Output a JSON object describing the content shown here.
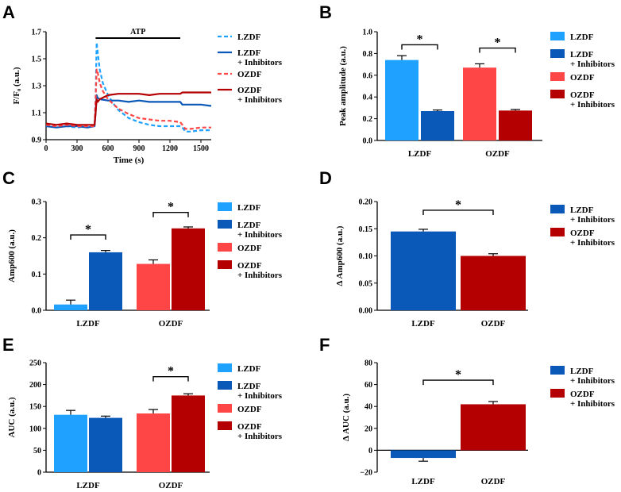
{
  "colors": {
    "lzdf": "#1fa2ff",
    "lzdf_inh": "#0a58b8",
    "ozdf": "#ff4646",
    "ozdf_inh": "#b40000",
    "axis": "#000000"
  },
  "chart_data": [
    {
      "panel": "A",
      "type": "line",
      "title": "",
      "xlabel": "Time (s)",
      "ylabel": "F/F₀ (a.u.)",
      "xlim": [
        0,
        1600
      ],
      "ylim": [
        0.9,
        1.7
      ],
      "xticks": [
        0,
        300,
        600,
        900,
        1200,
        1500
      ],
      "yticks": [
        0.9,
        1.1,
        1.3,
        1.5,
        1.7
      ],
      "ytick_labels": [
        "0.9",
        "1.1",
        "1.3",
        "1.5",
        "1.7"
      ],
      "annotation": {
        "label": "ATP",
        "x_start": 480,
        "x_end": 1300
      },
      "series": [
        {
          "key": "lzdf",
          "name": "LZDF",
          "line2": "",
          "dash": true,
          "x": [
            0,
            100,
            200,
            300,
            400,
            470,
            480,
            490,
            500,
            520,
            550,
            600,
            650,
            700,
            800,
            900,
            1000,
            1100,
            1200,
            1300,
            1320,
            1350,
            1400,
            1500,
            1600
          ],
          "y": [
            1.0,
            1.0,
            1.0,
            0.99,
            1.0,
            1.0,
            1.2,
            1.62,
            1.55,
            1.42,
            1.32,
            1.23,
            1.17,
            1.12,
            1.06,
            1.03,
            1.01,
            1.0,
            1.0,
            1.0,
            0.99,
            0.96,
            0.96,
            0.97,
            0.97
          ]
        },
        {
          "key": "lzdf_inh",
          "name": "LZDF",
          "line2": "+ Inhibitors",
          "dash": false,
          "x": [
            0,
            100,
            200,
            300,
            400,
            470,
            480,
            490,
            500,
            520,
            600,
            700,
            800,
            900,
            1000,
            1100,
            1200,
            1300,
            1320,
            1400,
            1500,
            1600
          ],
          "y": [
            1.0,
            0.99,
            1.0,
            1.0,
            0.99,
            1.0,
            1.1,
            1.23,
            1.21,
            1.2,
            1.19,
            1.19,
            1.18,
            1.19,
            1.18,
            1.18,
            1.18,
            1.18,
            1.16,
            1.16,
            1.16,
            1.15
          ]
        },
        {
          "key": "ozdf",
          "name": "OZDF",
          "line2": "",
          "dash": true,
          "x": [
            0,
            100,
            200,
            300,
            400,
            470,
            480,
            490,
            500,
            520,
            550,
            600,
            700,
            800,
            900,
            1000,
            1100,
            1200,
            1300,
            1320,
            1350,
            1400,
            1500,
            1600
          ],
          "y": [
            1.01,
            1.0,
            1.01,
            1.0,
            1.0,
            1.0,
            1.2,
            1.42,
            1.4,
            1.32,
            1.26,
            1.2,
            1.13,
            1.09,
            1.06,
            1.05,
            1.04,
            1.04,
            1.03,
            1.01,
            0.98,
            0.98,
            0.99,
            0.99
          ]
        },
        {
          "key": "ozdf_inh",
          "name": "OZDF",
          "line2": "+ Inhibitors",
          "dash": false,
          "x": [
            0,
            100,
            200,
            300,
            400,
            470,
            480,
            490,
            500,
            520,
            600,
            700,
            800,
            900,
            1000,
            1100,
            1200,
            1300,
            1320,
            1400,
            1500,
            1600
          ],
          "y": [
            1.02,
            1.01,
            1.02,
            1.01,
            1.01,
            1.01,
            1.1,
            1.2,
            1.18,
            1.2,
            1.23,
            1.24,
            1.24,
            1.24,
            1.23,
            1.24,
            1.24,
            1.24,
            1.25,
            1.25,
            1.25,
            1.25
          ]
        }
      ]
    },
    {
      "panel": "B",
      "type": "bar",
      "ylabel": "Peak amplitude (a.u.)",
      "ylim": [
        0,
        1.0
      ],
      "yticks": [
        0,
        0.2,
        0.4,
        0.6,
        0.8,
        1.0
      ],
      "ytick_labels": [
        "0.0",
        "0.2",
        "0.4",
        "0.6",
        "0.8",
        "1.0"
      ],
      "categories": [
        "LZDF",
        "OZDF"
      ],
      "bars": [
        {
          "key": "lzdf",
          "value": 0.74,
          "err": 0.04
        },
        {
          "key": "lzdf_inh",
          "value": 0.27,
          "err": 0.01
        },
        {
          "key": "ozdf",
          "value": 0.67,
          "err": 0.035
        },
        {
          "key": "ozdf_inh",
          "value": 0.275,
          "err": 0.01
        }
      ],
      "sig": [
        {
          "a": 0,
          "b": 1,
          "label": "*",
          "y": 0.88
        },
        {
          "a": 2,
          "b": 3,
          "label": "*",
          "y": 0.85
        }
      ],
      "legend": [
        {
          "key": "lzdf",
          "l1": "LZDF",
          "l2": ""
        },
        {
          "key": "lzdf_inh",
          "l1": "LZDF",
          "l2": "+ Inhibitors"
        },
        {
          "key": "ozdf",
          "l1": "OZDF",
          "l2": ""
        },
        {
          "key": "ozdf_inh",
          "l1": "OZDF",
          "l2": "+ Inhibitors"
        }
      ]
    },
    {
      "panel": "C",
      "type": "bar",
      "ylabel": "Amp600 (a.u.)",
      "ylim": [
        0,
        0.3
      ],
      "yticks": [
        0,
        0.1,
        0.2,
        0.3
      ],
      "ytick_labels": [
        "0.0",
        "0.1",
        "0.2",
        "0.3"
      ],
      "categories": [
        "LZDF",
        "OZDF"
      ],
      "bars": [
        {
          "key": "lzdf",
          "value": 0.016,
          "err": 0.012
        },
        {
          "key": "lzdf_inh",
          "value": 0.16,
          "err": 0.005
        },
        {
          "key": "ozdf",
          "value": 0.128,
          "err": 0.011
        },
        {
          "key": "ozdf_inh",
          "value": 0.226,
          "err": 0.004
        }
      ],
      "sig": [
        {
          "a": 0,
          "b": 1,
          "label": "*",
          "y": 0.208
        },
        {
          "a": 2,
          "b": 3,
          "label": "*",
          "y": 0.27
        }
      ],
      "legend": [
        {
          "key": "lzdf",
          "l1": "LZDF",
          "l2": ""
        },
        {
          "key": "lzdf_inh",
          "l1": "LZDF",
          "l2": "+ Inhibitors"
        },
        {
          "key": "ozdf",
          "l1": "OZDF",
          "l2": ""
        },
        {
          "key": "ozdf_inh",
          "l1": "OZDF",
          "l2": "+ Inhibitors"
        }
      ]
    },
    {
      "panel": "D",
      "type": "bar",
      "ylabel": "Δ Amp600 (a.u.)",
      "ylim": [
        0,
        0.2
      ],
      "yticks": [
        0,
        0.05,
        0.1,
        0.15,
        0.2
      ],
      "ytick_labels": [
        "0.00",
        "0.05",
        "0.10",
        "0.15",
        "0.20"
      ],
      "categories": [
        "LZDF",
        "OZDF"
      ],
      "bars": [
        {
          "key": "lzdf_inh",
          "value": 0.145,
          "err": 0.004
        },
        {
          "key": "ozdf_inh",
          "value": 0.1,
          "err": 0.004
        }
      ],
      "sig": [
        {
          "a": 0,
          "b": 1,
          "label": "*",
          "y": 0.184
        }
      ],
      "legend": [
        {
          "key": "lzdf_inh",
          "l1": "LZDF",
          "l2": "+ Inhibitors"
        },
        {
          "key": "ozdf_inh",
          "l1": "OZDF",
          "l2": "+ Inhibitors"
        }
      ]
    },
    {
      "panel": "E",
      "type": "bar",
      "ylabel": "AUC (a.u.)",
      "ylim": [
        0,
        250
      ],
      "yticks": [
        0,
        50,
        100,
        150,
        200,
        250
      ],
      "ytick_labels": [
        "0",
        "50",
        "100",
        "150",
        "200",
        "250"
      ],
      "categories": [
        "LZDF",
        "OZDF"
      ],
      "bars": [
        {
          "key": "lzdf",
          "value": 131,
          "err": 10
        },
        {
          "key": "lzdf_inh",
          "value": 124,
          "err": 4
        },
        {
          "key": "ozdf",
          "value": 134,
          "err": 9
        },
        {
          "key": "ozdf_inh",
          "value": 175,
          "err": 4
        }
      ],
      "sig": [
        {
          "a": 2,
          "b": 3,
          "label": "*",
          "y": 218
        }
      ],
      "legend": [
        {
          "key": "lzdf",
          "l1": "LZDF",
          "l2": ""
        },
        {
          "key": "lzdf_inh",
          "l1": "LZDF",
          "l2": "+ Inhibitors"
        },
        {
          "key": "ozdf",
          "l1": "OZDF",
          "l2": ""
        },
        {
          "key": "ozdf_inh",
          "l1": "OZDF",
          "l2": "+ Inhibitors"
        }
      ]
    },
    {
      "panel": "F",
      "type": "bar",
      "ylabel": "Δ AUC (a.u.)",
      "ylim": [
        -20,
        80
      ],
      "yticks": [
        -20,
        0,
        20,
        40,
        60,
        80
      ],
      "ytick_labels": [
        "−20",
        "0",
        "20",
        "40",
        "60",
        "80"
      ],
      "categories": [
        "LZDF",
        "OZDF"
      ],
      "bars": [
        {
          "key": "lzdf_inh",
          "value": -7,
          "err": 3
        },
        {
          "key": "ozdf_inh",
          "value": 42,
          "err": 2.5
        }
      ],
      "sig": [
        {
          "a": 0,
          "b": 1,
          "label": "*",
          "y": 64
        }
      ],
      "legend": [
        {
          "key": "lzdf_inh",
          "l1": "LZDF",
          "l2": "+ Inhibitors"
        },
        {
          "key": "ozdf_inh",
          "l1": "OZDF",
          "l2": "+ Inhibitors"
        }
      ]
    }
  ]
}
